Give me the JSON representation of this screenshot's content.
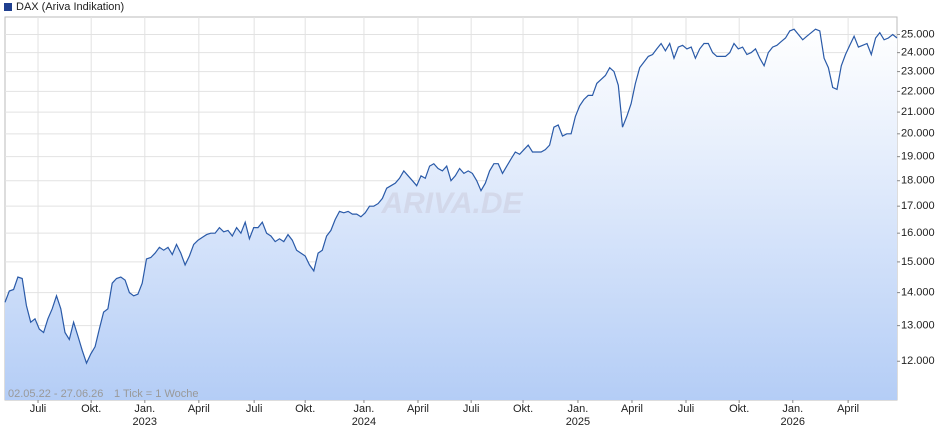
{
  "chart_data": {
    "type": "area",
    "log_scale": true,
    "grid": true,
    "series": [
      {
        "name": "DAX (Ariva Indikation)",
        "color": "#2a5aa8",
        "values": [
          13700,
          14050,
          14100,
          14500,
          14450,
          13600,
          13100,
          13200,
          12900,
          12800,
          13200,
          13500,
          13900,
          13500,
          12800,
          12600,
          13100,
          12700,
          12300,
          11950,
          12200,
          12400,
          12900,
          13400,
          13500,
          14300,
          14450,
          14500,
          14400,
          14000,
          13900,
          13950,
          14300,
          15100,
          15150,
          15300,
          15500,
          15400,
          15500,
          15250,
          15600,
          15300,
          14900,
          15200,
          15600,
          15750,
          15850,
          15950,
          16000,
          16000,
          16200,
          16050,
          16100,
          15900,
          16200,
          16000,
          16400,
          15800,
          16200,
          16200,
          16400,
          16000,
          15900,
          15700,
          15800,
          15700,
          15950,
          15750,
          15400,
          15300,
          15200,
          14900,
          14700,
          15300,
          15400,
          15900,
          16100,
          16500,
          16800,
          16750,
          16800,
          16700,
          16700,
          16600,
          16750,
          17000,
          17000,
          17100,
          17300,
          17700,
          17800,
          17900,
          18100,
          18400,
          18200,
          18000,
          17800,
          18200,
          18100,
          18600,
          18700,
          18500,
          18400,
          18600,
          18000,
          18200,
          18500,
          18300,
          18400,
          18300,
          18000,
          17600,
          17900,
          18400,
          18700,
          18700,
          18300,
          18600,
          18900,
          19200,
          19100,
          19300,
          19500,
          19200,
          19200,
          19200,
          19300,
          19500,
          20300,
          20400,
          19900,
          20000,
          20000,
          20800,
          21300,
          21600,
          21800,
          21800,
          22400,
          22600,
          22800,
          23200,
          23000,
          22300,
          20300,
          20800,
          21400,
          22400,
          23200,
          23500,
          23800,
          23900,
          24200,
          24500,
          24100,
          24500,
          23700,
          24300,
          24400,
          24200,
          24300,
          23700,
          24200,
          24500,
          24500,
          24000,
          23800,
          23800,
          23800,
          24000,
          24500,
          24200,
          24300,
          23900,
          24000,
          24200,
          23700,
          23300,
          24000,
          24300,
          24400,
          24600,
          24800,
          25200,
          25300,
          25000,
          24700,
          24900,
          25100,
          25300,
          25200,
          23700,
          23200,
          22200,
          22100,
          23300,
          23900,
          24400,
          24900,
          24300,
          24400,
          24500,
          23900,
          24800,
          25100,
          24700,
          24800,
          25000,
          24800
        ]
      }
    ],
    "xlim": [
      0,
      208
    ],
    "xticks": [
      {
        "value": 7.7,
        "label": "Juli"
      },
      {
        "value": 20.1,
        "label": "Okt."
      },
      {
        "value": 32.6,
        "label": "Jan."
      },
      {
        "value": 45.2,
        "label": "April"
      },
      {
        "value": 58.1,
        "label": "Juli"
      },
      {
        "value": 70.0,
        "label": "Okt."
      },
      {
        "value": 83.7,
        "label": "Jan."
      },
      {
        "value": 96.3,
        "label": "April"
      },
      {
        "value": 108.7,
        "label": "Juli"
      },
      {
        "value": 120.8,
        "label": "Okt."
      },
      {
        "value": 133.6,
        "label": "Jan."
      },
      {
        "value": 146.2,
        "label": "April"
      },
      {
        "value": 158.8,
        "label": "Juli"
      },
      {
        "value": 171.2,
        "label": "Okt."
      },
      {
        "value": 183.7,
        "label": "Jan."
      },
      {
        "value": 196.6,
        "label": "April"
      }
    ],
    "xyears": [
      {
        "value": 32.6,
        "label": "2023"
      },
      {
        "value": 83.7,
        "label": "2024"
      },
      {
        "value": 133.6,
        "label": "2025"
      },
      {
        "value": 183.7,
        "label": "2026"
      }
    ],
    "ylim": [
      11000,
      26000
    ],
    "yticks": [
      {
        "value": 12000,
        "label": "12.000"
      },
      {
        "value": 13000,
        "label": "13.000"
      },
      {
        "value": 14000,
        "label": "14.000"
      },
      {
        "value": 15000,
        "label": "15.000"
      },
      {
        "value": 16000,
        "label": "16.000"
      },
      {
        "value": 17000,
        "label": "17.000"
      },
      {
        "value": 18000,
        "label": "18.000"
      },
      {
        "value": 19000,
        "label": "19.000"
      },
      {
        "value": 20000,
        "label": "20.000"
      },
      {
        "value": 21000,
        "label": "21.000"
      },
      {
        "value": 22000,
        "label": "22.000"
      },
      {
        "value": 23000,
        "label": "23.000"
      },
      {
        "value": 24000,
        "label": "24.000"
      },
      {
        "value": 25000,
        "label": "25.000"
      }
    ],
    "date_range": "02.05.22 - 27.06.26",
    "tick_note": "1 Tick = 1 Woche",
    "watermark": "ARIVA.DE"
  }
}
